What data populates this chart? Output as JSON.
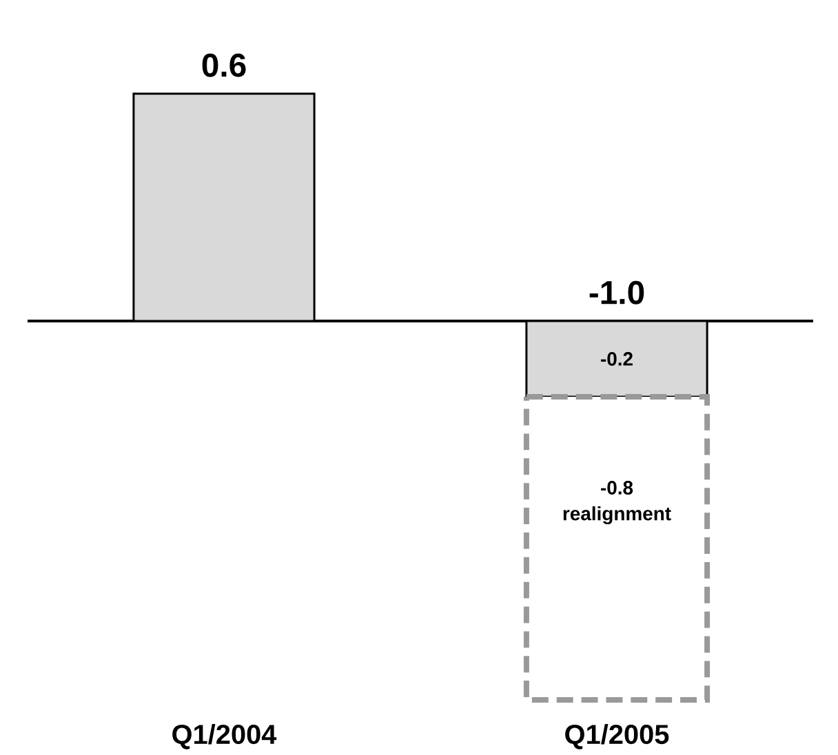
{
  "chart_data": {
    "type": "bar",
    "stacked": true,
    "categories": [
      "Q1/2004",
      "Q1/2005"
    ],
    "series": [
      {
        "color": "#d9d9d9",
        "values": [
          0.6,
          -0.2
        ],
        "value_labels": [
          null,
          "-0.2"
        ]
      },
      {
        "color": "#999999",
        "values": [
          null,
          -0.8
        ],
        "value_labels": [
          null,
          "-0.8"
        ],
        "line_style": "dashed"
      }
    ],
    "totals": [
      "0.6",
      "-1.0"
    ],
    "annotations": [
      "realignment"
    ],
    "ylim": [
      -1.0,
      0.6
    ],
    "tick_labels": "x",
    "grid": false
  }
}
